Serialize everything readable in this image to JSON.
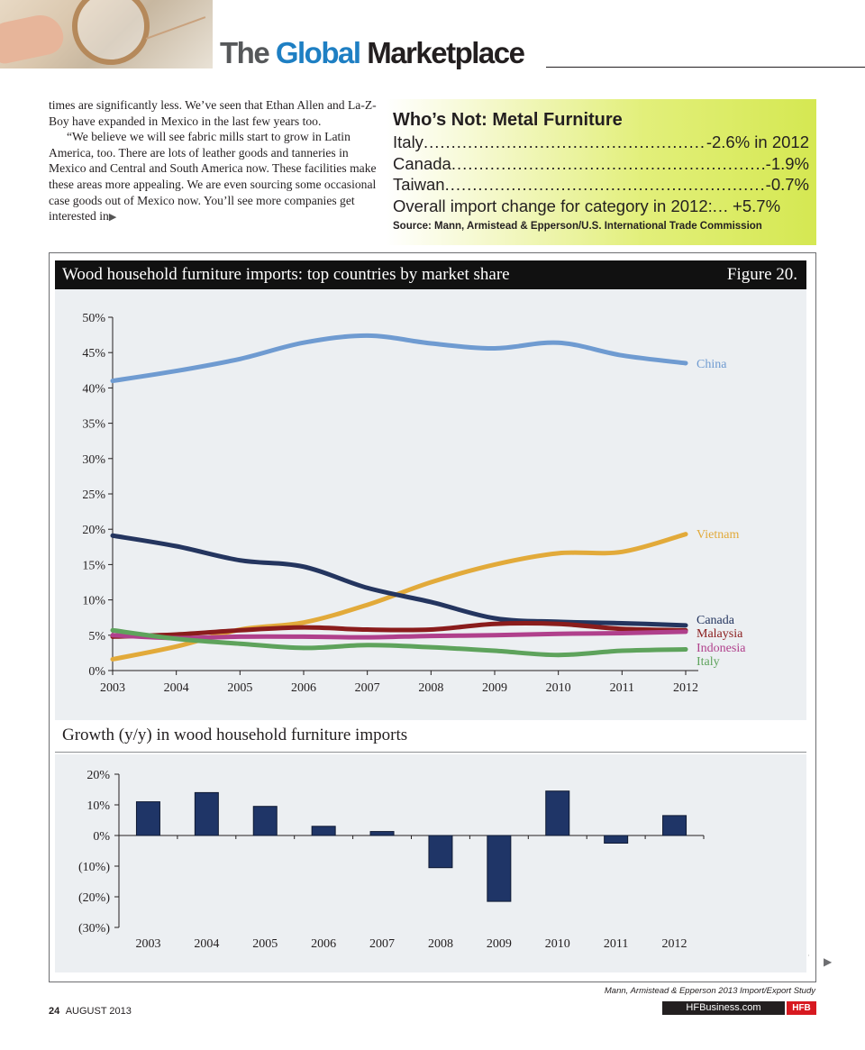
{
  "header": {
    "title_part1": "The",
    "title_part2": "Global",
    "title_part3": "Marketplace"
  },
  "article": {
    "paragraph1": "times are significantly less. We’ve seen that Ethan Allen and La-Z-Boy have expanded in Mexico in the last few years too.",
    "paragraph2": "“We believe we will see fabric mills start to grow in Latin America, too. There are lots of leather goods and tanneries in Mexico and Central and South America now. These facilities make these areas more appealing. We are even sourcing some occasional case goods out of Mexico now. You’ll see more companies get interested in",
    "continue_arrow": "▶"
  },
  "sidebar": {
    "title": "Who’s Not: Metal Furniture",
    "rows": [
      {
        "label": "Italy",
        "value": "-2.6% in 2012"
      },
      {
        "label": "Canada",
        "value": " -1.9%"
      },
      {
        "label": "Taiwan",
        "value": " -0.7%"
      },
      {
        "label": "Overall import change for category in 2012:",
        "value": ". +5.7%"
      }
    ],
    "source": "Source: Mann, Armistead & Epperson/U.S. International Trade Commission"
  },
  "figure": {
    "title": "Wood household furniture imports: top countries by market share",
    "number": "Figure 20.",
    "growth_title": "Growth (y/y) in wood household furniture imports"
  },
  "chart_data": [
    {
      "type": "line",
      "title": "Wood household furniture imports: top countries by market share",
      "x": [
        2003,
        2004,
        2005,
        2006,
        2007,
        2008,
        2009,
        2010,
        2011,
        2012
      ],
      "x_tick_labels": [
        "2003",
        "2004",
        "2005",
        "2006",
        "2007",
        "2008",
        "2009",
        "2010",
        "2011",
        "2012"
      ],
      "ylim": [
        0,
        50
      ],
      "y_ticks": [
        0,
        5,
        10,
        15,
        20,
        25,
        30,
        35,
        40,
        45,
        50
      ],
      "y_tick_labels": [
        "0%",
        "5%",
        "10%",
        "15%",
        "20%",
        "25%",
        "30%",
        "35%",
        "40%",
        "45%",
        "50%"
      ],
      "grid": false,
      "legend": "direct labels at right end of lines",
      "series": [
        {
          "name": "China",
          "color": "#6f9bd1",
          "values": [
            41,
            42.4,
            44.1,
            46.4,
            47.4,
            46.3,
            45.6,
            46.4,
            44.6,
            43.5
          ]
        },
        {
          "name": "Vietnam",
          "color": "#e2aa3a",
          "values": [
            1.6,
            3.4,
            5.8,
            6.8,
            9.3,
            12.5,
            15,
            16.6,
            16.8,
            19.3
          ]
        },
        {
          "name": "Canada",
          "color": "#24355f",
          "values": [
            19.1,
            17.6,
            15.6,
            14.7,
            11.7,
            9.7,
            7.4,
            6.9,
            6.7,
            6.4
          ]
        },
        {
          "name": "Malaysia",
          "color": "#8a1c1c",
          "values": [
            4.8,
            5.1,
            5.7,
            6.1,
            5.8,
            5.8,
            6.6,
            6.6,
            5.9,
            5.7
          ]
        },
        {
          "name": "Indonesia",
          "color": "#b0408c",
          "values": [
            5,
            4.6,
            4.8,
            4.8,
            4.7,
            4.9,
            5,
            5.2,
            5.3,
            5.5
          ]
        },
        {
          "name": "Italy",
          "color": "#5ea35c",
          "values": [
            5.7,
            4.5,
            3.8,
            3.2,
            3.6,
            3.3,
            2.8,
            2.2,
            2.8,
            3
          ]
        }
      ]
    },
    {
      "type": "bar",
      "title": "Growth (y/y) in wood household furniture imports",
      "categories": [
        "2003",
        "2004",
        "2005",
        "2006",
        "2007",
        "2008",
        "2009",
        "2010",
        "2011",
        "2012"
      ],
      "values": [
        11,
        14,
        9.5,
        3,
        1.3,
        -10.5,
        -21.5,
        14.5,
        -2.5,
        6.5
      ],
      "ylim": [
        -30,
        20
      ],
      "y_ticks": [
        -30,
        -20,
        -10,
        0,
        10,
        20
      ],
      "y_tick_labels": [
        "(30%)",
        "(20%)",
        "(10%)",
        "0%",
        "10%",
        "20%"
      ],
      "bar_color": "#1f3567",
      "grid": false
    }
  ],
  "footer": {
    "credit": "Mann, Armistead & Epperson 2013 Import/Export Study",
    "page_number": "24",
    "issue": "AUGUST 2013",
    "site": "HFBusiness.com",
    "brand": "HFB",
    "next_arrow": "▶"
  }
}
